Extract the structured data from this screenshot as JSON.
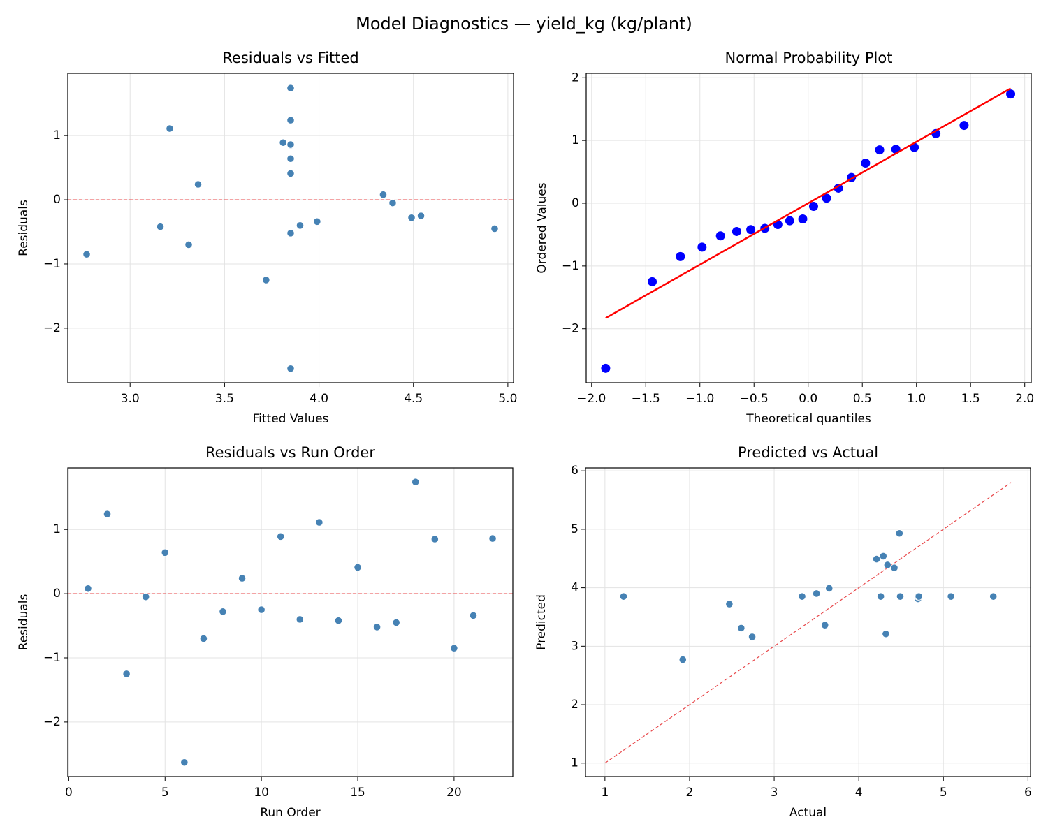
{
  "title": "Model Diagnostics — yield_kg (kg/plant)",
  "chart_data": [
    {
      "type": "scatter",
      "title": "Residuals vs Fitted",
      "xlabel": "Fitted Values",
      "ylabel": "Residuals",
      "xlim": [
        2.67,
        5.03
      ],
      "ylim": [
        -2.85,
        1.97
      ],
      "xticks": [
        {
          "value": 3.0,
          "label": "3.0"
        },
        {
          "value": 3.5,
          "label": "3.5"
        },
        {
          "value": 4.0,
          "label": "4.0"
        },
        {
          "value": 4.5,
          "label": "4.5"
        },
        {
          "value": 5.0,
          "label": "5.0"
        }
      ],
      "yticks": [
        {
          "value": -2,
          "label": "−2"
        },
        {
          "value": -1,
          "label": "−1"
        },
        0,
        1
      ],
      "grid": true,
      "ref_lines": [
        {
          "y": 0,
          "color": "#e8474a"
        }
      ],
      "series": [
        {
          "mark": "dot",
          "color": "#4682b4",
          "x": [
            4.34,
            3.85,
            3.72,
            4.39,
            3.85,
            3.85,
            3.31,
            4.49,
            3.36,
            4.54,
            3.81,
            3.9,
            3.21,
            3.16,
            3.85,
            3.85,
            4.93,
            3.85,
            3.85,
            2.77,
            3.99,
            3.85
          ],
          "values": [
            0.08,
            1.24,
            -1.25,
            -0.05,
            0.64,
            -2.63,
            -0.7,
            -0.28,
            0.24,
            -0.25,
            0.89,
            -0.4,
            1.11,
            -0.42,
            0.41,
            -0.52,
            -0.45,
            1.74,
            0.85,
            -0.85,
            -0.34,
            0.86
          ]
        }
      ]
    },
    {
      "type": "scatter",
      "title": "Normal Probability Plot",
      "xlabel": "Theoretical quantiles",
      "ylabel": "Ordered Values",
      "xlim": [
        -2.05,
        2.06
      ],
      "ylim": [
        -2.86,
        2.07
      ],
      "xticks": [
        {
          "value": -2.0,
          "label": "−2.0"
        },
        {
          "value": -1.5,
          "label": "−1.5"
        },
        {
          "value": -1.0,
          "label": "−1.0"
        },
        {
          "value": -0.5,
          "label": "−0.5"
        },
        {
          "value": 0.0,
          "label": "0.0"
        },
        {
          "value": 0.5,
          "label": "0.5"
        },
        {
          "value": 1.0,
          "label": "1.0"
        },
        {
          "value": 1.5,
          "label": "1.5"
        },
        {
          "value": 2.0,
          "label": "2.0"
        }
      ],
      "yticks": [
        {
          "value": -2,
          "label": "−2"
        },
        {
          "value": -1,
          "label": "−1"
        },
        0,
        1,
        2
      ],
      "grid": true,
      "series": [
        {
          "mark": "big-dot",
          "color": "#0000ff",
          "x": [
            -1.87,
            -1.44,
            -1.18,
            -0.98,
            -0.81,
            -0.66,
            -0.53,
            -0.4,
            -0.28,
            -0.17,
            -0.05,
            0.05,
            0.17,
            0.28,
            0.4,
            0.53,
            0.66,
            0.81,
            0.98,
            1.18,
            1.44,
            1.87
          ],
          "values": [
            -2.63,
            -1.25,
            -0.85,
            -0.7,
            -0.52,
            -0.45,
            -0.42,
            -0.4,
            -0.34,
            -0.28,
            -0.25,
            -0.05,
            0.08,
            0.24,
            0.41,
            0.64,
            0.85,
            0.86,
            0.89,
            1.11,
            1.24,
            1.74
          ]
        },
        {
          "mark": "line",
          "color": "#ff0000",
          "x": [
            -1.87,
            1.87
          ],
          "values": [
            -1.83,
            1.83
          ]
        }
      ]
    },
    {
      "type": "scatter",
      "title": "Residuals vs Run Order",
      "xlabel": "Run Order",
      "ylabel": "Residuals",
      "xlim": [
        -0.05,
        23.05
      ],
      "ylim": [
        -2.85,
        1.96
      ],
      "xticks": [
        0,
        5,
        10,
        15,
        20
      ],
      "yticks": [
        {
          "value": -2,
          "label": "−2"
        },
        {
          "value": -1,
          "label": "−1"
        },
        0,
        1
      ],
      "grid": true,
      "ref_lines": [
        {
          "y": 0,
          "color": "#e8474a"
        }
      ],
      "series": [
        {
          "mark": "dot",
          "color": "#4682b4",
          "x": [
            1,
            2,
            3,
            4,
            5,
            6,
            7,
            8,
            9,
            10,
            11,
            12,
            13,
            14,
            15,
            16,
            17,
            18,
            19,
            20,
            21,
            22
          ],
          "values": [
            0.08,
            1.24,
            -1.25,
            -0.05,
            0.64,
            -2.63,
            -0.7,
            -0.28,
            0.24,
            -0.25,
            0.89,
            -0.4,
            1.11,
            -0.42,
            0.41,
            -0.52,
            -0.45,
            1.74,
            0.85,
            -0.85,
            -0.34,
            0.86
          ]
        }
      ]
    },
    {
      "type": "scatter",
      "title": "Predicted vs Actual",
      "xlabel": "Actual",
      "ylabel": "Predicted",
      "xlim": [
        0.77,
        6.03
      ],
      "ylim": [
        0.77,
        6.05
      ],
      "xticks": [
        1,
        2,
        3,
        4,
        5,
        6
      ],
      "yticks": [
        1,
        2,
        3,
        4,
        5,
        6
      ],
      "grid": true,
      "series": [
        {
          "mark": "dashed-line",
          "color": "#e8474a",
          "x": [
            1.0,
            5.8
          ],
          "values": [
            1.0,
            5.8
          ]
        },
        {
          "mark": "dot",
          "color": "#4682b4",
          "x": [
            4.42,
            5.09,
            2.47,
            4.34,
            4.49,
            1.22,
            2.61,
            4.21,
            3.6,
            4.29,
            4.7,
            3.5,
            4.32,
            2.74,
            4.26,
            3.33,
            4.48,
            5.59,
            4.7,
            1.92,
            3.65,
            4.71
          ],
          "values": [
            4.34,
            3.85,
            3.72,
            4.39,
            3.85,
            3.85,
            3.31,
            4.49,
            3.36,
            4.54,
            3.81,
            3.9,
            3.21,
            3.16,
            3.85,
            3.85,
            4.93,
            3.85,
            3.85,
            2.77,
            3.99,
            3.85
          ]
        }
      ]
    }
  ]
}
